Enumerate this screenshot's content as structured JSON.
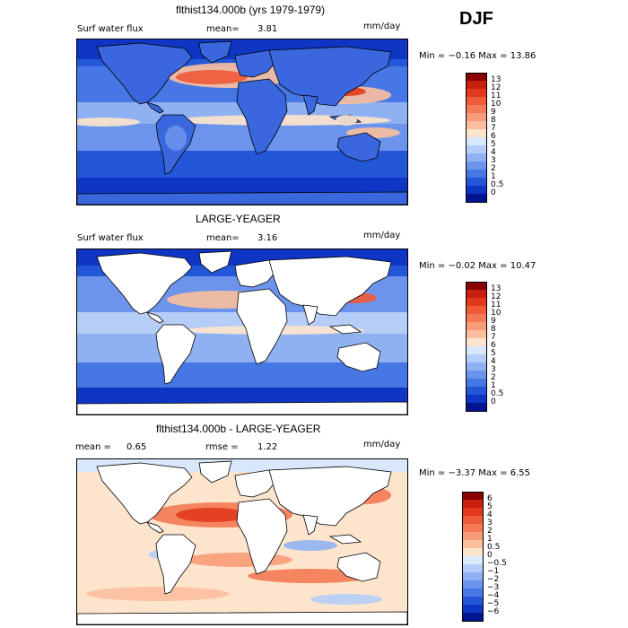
{
  "season": "DJF",
  "panels": [
    {
      "title": "flthist134.000b (yrs 1979-1979)",
      "left_label": "Surf water flux",
      "mean_label": "mean=",
      "mean_value": "3.81",
      "units": "mm/day",
      "stats": "Min =  −0.16 Max =  13.86",
      "mode": "full",
      "colorbar": [
        "13",
        "12",
        "11",
        "10",
        "9",
        "8",
        "7",
        "6",
        "5",
        "4",
        "3",
        "2",
        "1",
        "0.5",
        "0"
      ],
      "colors": [
        "#8b0000",
        "#c8200e",
        "#e2391c",
        "#ef5a38",
        "#f47a55",
        "#f89b78",
        "#fbbf9e",
        "#fde4cc",
        "#d9e7fb",
        "#b5cdf7",
        "#8fb1f2",
        "#6c94ec",
        "#4677e4",
        "#2457d8",
        "#0f35c4",
        "#00148f"
      ]
    },
    {
      "title": "LARGE-YEAGER",
      "left_label": "Surf water flux",
      "mean_label": "mean=",
      "mean_value": "3.16",
      "units": "mm/day",
      "stats": "Min =  −0.02 Max =  10.47",
      "mode": "ocean",
      "colorbar": [
        "13",
        "12",
        "11",
        "10",
        "9",
        "8",
        "7",
        "6",
        "5",
        "4",
        "3",
        "2",
        "1",
        "0.5",
        "0"
      ],
      "colors": [
        "#8b0000",
        "#c8200e",
        "#e2391c",
        "#ef5a38",
        "#f47a55",
        "#f89b78",
        "#fbbf9e",
        "#fde4cc",
        "#d9e7fb",
        "#b5cdf7",
        "#8fb1f2",
        "#6c94ec",
        "#4677e4",
        "#2457d8",
        "#0f35c4",
        "#00148f"
      ]
    },
    {
      "title": "flthist134.000b - LARGE-YEAGER",
      "left_label": "mean =",
      "mean_label": "",
      "mean_value": "0.65",
      "rmse_label": "rmse =",
      "rmse_value": "1.22",
      "units": "mm/day",
      "stats": "Min =  −3.37 Max =   6.55",
      "mode": "diff",
      "colorbar": [
        "6",
        "5",
        "4",
        "3",
        "2",
        "1",
        "0.5",
        "0",
        "−0.5",
        "−1",
        "−2",
        "−3",
        "−4",
        "−5",
        "−6"
      ],
      "colors": [
        "#8b0000",
        "#c8200e",
        "#e2391c",
        "#ef5a38",
        "#f47a55",
        "#f89b78",
        "#fbbf9e",
        "#fde4cc",
        "#ddeafb",
        "#b5cdf7",
        "#8fb1f2",
        "#6c94ec",
        "#4677e4",
        "#2457d8",
        "#0f35c4",
        "#00148f"
      ]
    }
  ]
}
